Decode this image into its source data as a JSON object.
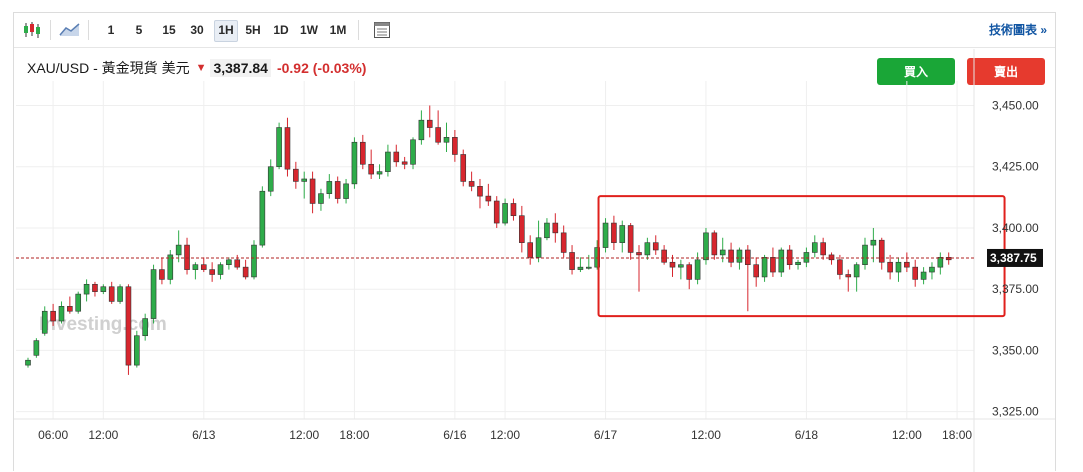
{
  "toolbar": {
    "candles_icon": "candlestick-icon",
    "area_icon": "area-chart-icon",
    "intervals": [
      "1",
      "5",
      "15",
      "30",
      "1H",
      "5H",
      "1D",
      "1W",
      "1M"
    ],
    "active_interval": "1H",
    "table_icon": "table-icon",
    "technical_link": "技術圖表 »"
  },
  "quote": {
    "title": "XAU/USD - 黃金現貨 美元",
    "direction_icon": "down-arrow-icon",
    "price": "3,387.84",
    "change": "-0.92 (-0.03%)"
  },
  "actions": {
    "buy_label": "買入",
    "sell_label": "賣出"
  },
  "colors": {
    "up": "#2eac4a",
    "down": "#d7262e",
    "buy": "#1aa637",
    "sell": "#e63a2e",
    "highlight_box": "#e0201c",
    "price_line": "#b22222"
  },
  "watermark": "Investing.com",
  "chart_data": {
    "type": "candlestick",
    "title": "",
    "xlabel": "",
    "ylabel": "",
    "ylim": [
      3322,
      3460
    ],
    "y_ticks": [
      "3,450.00",
      "3,425.00",
      "3,400.00",
      "3,375.00",
      "3,350.00",
      "3,325.00"
    ],
    "y_tick_values": [
      3450,
      3425,
      3400,
      3375,
      3350,
      3325
    ],
    "x_ticks": [
      "06:00",
      "12:00",
      "6/13",
      "12:00",
      "18:00",
      "6/16",
      "12:00",
      "6/17",
      "12:00",
      "6/18",
      "12:00",
      "18:00"
    ],
    "x_tick_index": [
      3,
      9,
      21,
      33,
      39,
      51,
      57,
      69,
      81,
      93,
      105,
      111
    ],
    "current_price_label": "3,387.75",
    "current_price": 3387.75,
    "grid": true,
    "highlight_box": {
      "from_index": 69,
      "to_index": 115,
      "y_low": 3364,
      "y_high": 3413
    },
    "candles": [
      [
        3344,
        3347,
        3343,
        3346
      ],
      [
        3348,
        3355,
        3347,
        3354
      ],
      [
        3357,
        3368,
        3356,
        3366
      ],
      [
        3366,
        3369,
        3360,
        3362
      ],
      [
        3362,
        3370,
        3361,
        3368
      ],
      [
        3368,
        3372,
        3365,
        3366
      ],
      [
        3366,
        3374,
        3365,
        3373
      ],
      [
        3373,
        3379,
        3370,
        3377
      ],
      [
        3377,
        3378,
        3372,
        3374
      ],
      [
        3374,
        3377,
        3373,
        3376
      ],
      [
        3376,
        3378,
        3369,
        3370
      ],
      [
        3370,
        3377,
        3369,
        3376
      ],
      [
        3376,
        3377,
        3340,
        3344
      ],
      [
        3344,
        3358,
        3343,
        3356
      ],
      [
        3356,
        3365,
        3354,
        3363
      ],
      [
        3363,
        3385,
        3361,
        3383
      ],
      [
        3383,
        3388,
        3377,
        3379
      ],
      [
        3379,
        3391,
        3377,
        3389
      ],
      [
        3389,
        3399,
        3386,
        3393
      ],
      [
        3393,
        3396,
        3381,
        3383
      ],
      [
        3383,
        3386,
        3379,
        3385
      ],
      [
        3385,
        3388,
        3382,
        3383
      ],
      [
        3383,
        3386,
        3378,
        3381
      ],
      [
        3381,
        3386,
        3379,
        3385
      ],
      [
        3385,
        3388,
        3383,
        3387
      ],
      [
        3387,
        3389,
        3383,
        3384
      ],
      [
        3384,
        3387,
        3379,
        3380
      ],
      [
        3380,
        3395,
        3379,
        3393
      ],
      [
        3393,
        3417,
        3392,
        3415
      ],
      [
        3415,
        3428,
        3413,
        3425
      ],
      [
        3425,
        3443,
        3424,
        3441
      ],
      [
        3441,
        3445,
        3421,
        3424
      ],
      [
        3424,
        3427,
        3416,
        3419
      ],
      [
        3419,
        3423,
        3412,
        3420
      ],
      [
        3420,
        3423,
        3406,
        3410
      ],
      [
        3410,
        3416,
        3407,
        3414
      ],
      [
        3414,
        3422,
        3412,
        3419
      ],
      [
        3419,
        3421,
        3410,
        3412
      ],
      [
        3412,
        3420,
        3410,
        3418
      ],
      [
        3418,
        3437,
        3416,
        3435
      ],
      [
        3435,
        3438,
        3424,
        3426
      ],
      [
        3426,
        3432,
        3420,
        3422
      ],
      [
        3422,
        3426,
        3420,
        3423
      ],
      [
        3423,
        3434,
        3421,
        3431
      ],
      [
        3431,
        3434,
        3425,
        3427
      ],
      [
        3427,
        3429,
        3424,
        3426
      ],
      [
        3426,
        3437,
        3424,
        3436
      ],
      [
        3436,
        3448,
        3434,
        3444
      ],
      [
        3444,
        3450,
        3437,
        3441
      ],
      [
        3441,
        3448,
        3434,
        3435
      ],
      [
        3435,
        3443,
        3431,
        3437
      ],
      [
        3437,
        3440,
        3427,
        3430
      ],
      [
        3430,
        3432,
        3417,
        3419
      ],
      [
        3419,
        3423,
        3415,
        3417
      ],
      [
        3417,
        3420,
        3408,
        3413
      ],
      [
        3413,
        3418,
        3409,
        3411
      ],
      [
        3411,
        3413,
        3400,
        3402
      ],
      [
        3402,
        3412,
        3401,
        3410
      ],
      [
        3410,
        3412,
        3403,
        3405
      ],
      [
        3405,
        3409,
        3390,
        3394
      ],
      [
        3394,
        3397,
        3385,
        3388
      ],
      [
        3388,
        3403,
        3386,
        3396
      ],
      [
        3396,
        3404,
        3395,
        3402
      ],
      [
        3402,
        3406,
        3394,
        3398
      ],
      [
        3398,
        3401,
        3388,
        3390
      ],
      [
        3390,
        3393,
        3381,
        3383
      ],
      [
        3383,
        3388,
        3382,
        3384
      ],
      [
        3384,
        3389,
        3383,
        3384
      ],
      [
        3384,
        3395,
        3383,
        3392
      ],
      [
        3392,
        3404,
        3390,
        3402
      ],
      [
        3402,
        3405,
        3391,
        3394
      ],
      [
        3394,
        3403,
        3390,
        3401
      ],
      [
        3401,
        3402,
        3387,
        3390
      ],
      [
        3390,
        3393,
        3374,
        3389
      ],
      [
        3389,
        3396,
        3387,
        3394
      ],
      [
        3394,
        3397,
        3389,
        3391
      ],
      [
        3391,
        3393,
        3385,
        3386
      ],
      [
        3386,
        3389,
        3380,
        3384
      ],
      [
        3384,
        3387,
        3379,
        3385
      ],
      [
        3385,
        3386,
        3375,
        3379
      ],
      [
        3379,
        3390,
        3377,
        3387
      ],
      [
        3387,
        3400,
        3385,
        3398
      ],
      [
        3398,
        3399,
        3387,
        3389
      ],
      [
        3389,
        3396,
        3386,
        3391
      ],
      [
        3391,
        3394,
        3384,
        3386
      ],
      [
        3386,
        3392,
        3383,
        3391
      ],
      [
        3391,
        3393,
        3366,
        3385
      ],
      [
        3385,
        3388,
        3376,
        3380
      ],
      [
        3380,
        3389,
        3378,
        3388
      ],
      [
        3388,
        3392,
        3380,
        3382
      ],
      [
        3382,
        3392,
        3380,
        3391
      ],
      [
        3391,
        3393,
        3383,
        3385
      ],
      [
        3385,
        3387,
        3383,
        3386
      ],
      [
        3386,
        3392,
        3384,
        3390
      ],
      [
        3390,
        3397,
        3388,
        3394
      ],
      [
        3394,
        3396,
        3387,
        3389
      ],
      [
        3389,
        3390,
        3385,
        3387
      ],
      [
        3387,
        3389,
        3379,
        3381
      ],
      [
        3381,
        3383,
        3374,
        3380
      ],
      [
        3380,
        3386,
        3374,
        3385
      ],
      [
        3385,
        3396,
        3383,
        3393
      ],
      [
        3393,
        3400,
        3386,
        3395
      ],
      [
        3395,
        3396,
        3383,
        3386
      ],
      [
        3386,
        3389,
        3379,
        3382
      ],
      [
        3382,
        3388,
        3378,
        3386
      ],
      [
        3386,
        3390,
        3382,
        3384
      ],
      [
        3384,
        3387,
        3376,
        3379
      ],
      [
        3379,
        3384,
        3377,
        3382
      ],
      [
        3382,
        3386,
        3379,
        3384
      ],
      [
        3384,
        3390,
        3381,
        3388
      ],
      [
        3388,
        3390,
        3385,
        3387
      ]
    ]
  }
}
